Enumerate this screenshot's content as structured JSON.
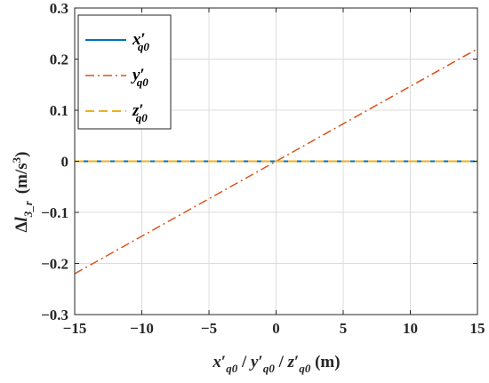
{
  "chart_data": {
    "type": "line",
    "x": [
      -15,
      15
    ],
    "xlim": [
      -15,
      15
    ],
    "ylim": [
      -0.3,
      0.3
    ],
    "xticks": [
      -15,
      -10,
      -5,
      0,
      5,
      10,
      15
    ],
    "yticks": [
      -0.3,
      -0.2,
      -0.1,
      0,
      0.1,
      0.2,
      0.3
    ],
    "xtick_labels": [
      "−15",
      "−10",
      "−5",
      "0",
      "5",
      "10",
      "15"
    ],
    "ytick_labels": [
      "−0.3",
      "−0.2",
      "−0.1",
      "0",
      "0.1",
      "0.2",
      "0.3"
    ],
    "grid": true,
    "legend_position": "top-left",
    "xlabel": {
      "parts": [
        "x",
        "′",
        "q0",
        " / ",
        "y",
        "′",
        "q0",
        " / ",
        "z",
        "′",
        "q0",
        "  (m)"
      ]
    },
    "ylabel": {
      "delta": "Δ",
      "var": "l",
      "sub": "3_r",
      "unit": "(m/s",
      "unit_sup": "3",
      "unit_close": ")"
    },
    "series": [
      {
        "var": "x",
        "prime": "′",
        "sub": "q0",
        "values": [
          0,
          0
        ],
        "color": "#0072BD",
        "style": "solid"
      },
      {
        "var": "y",
        "prime": "′",
        "sub": "q0",
        "values": [
          -0.22,
          0.22
        ],
        "color": "#D95319",
        "style": "dashdot"
      },
      {
        "var": "z",
        "prime": "′",
        "sub": "q0",
        "values": [
          0,
          0
        ],
        "color": "#EDB120",
        "style": "dashed"
      }
    ]
  }
}
